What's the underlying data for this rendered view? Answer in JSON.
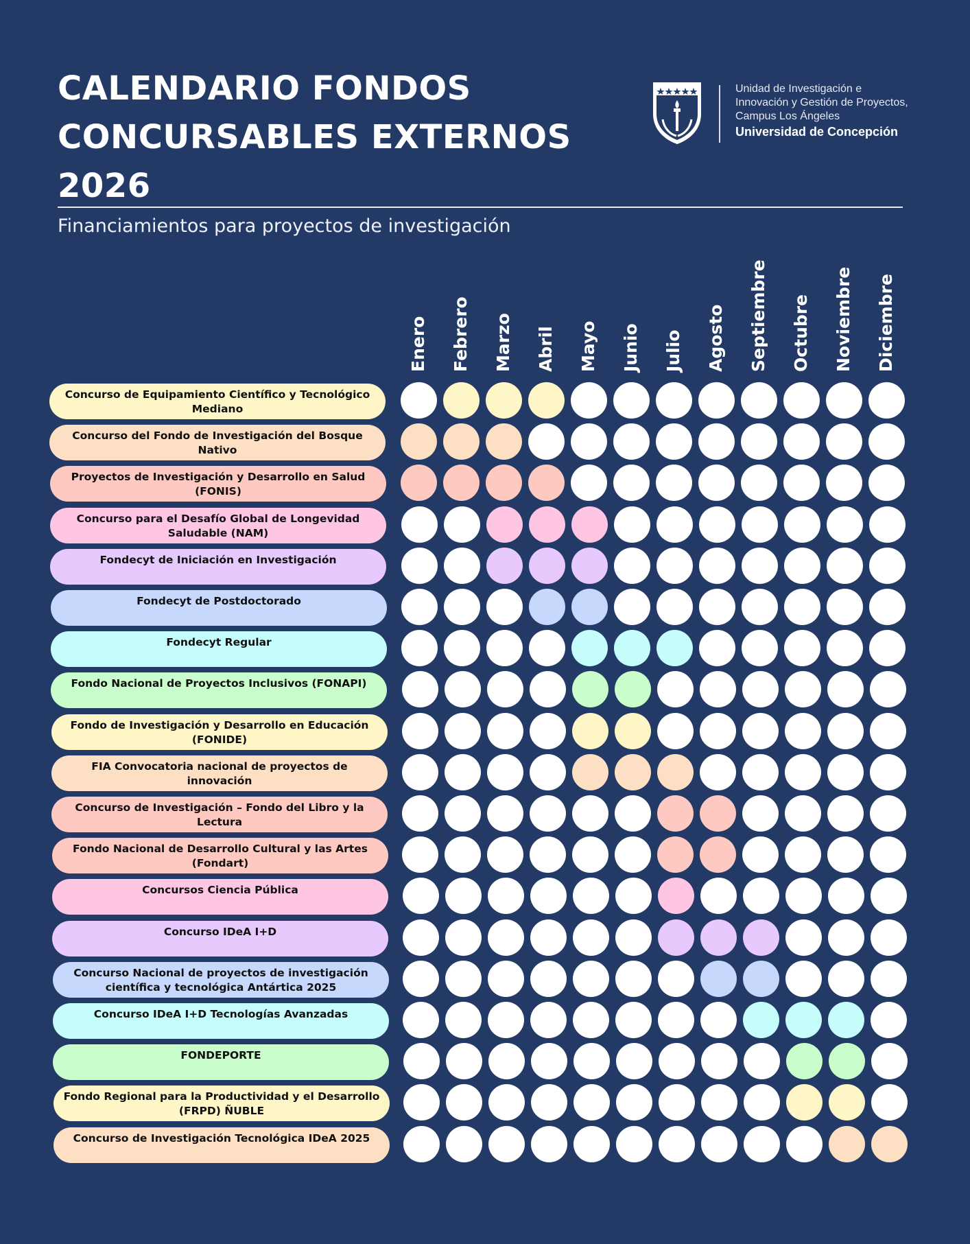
{
  "header": {
    "title_lines": [
      "CALENDARIO FONDOS",
      "CONCURSABLES EXTERNOS",
      "2026"
    ],
    "subtitle": "Financiamientos para proyectos de investigación"
  },
  "logo": {
    "line1": "Unidad de Investigación e",
    "line2": "Innovación y Gestión de Proyectos,",
    "line3": "Campus Los Ángeles",
    "university": "Universidad de Concepción",
    "icon": "udec-shield-icon"
  },
  "months": [
    "Enero",
    "Febrero",
    "Marzo",
    "Abril",
    "Mayo",
    "Junio",
    "Julio",
    "Agosto",
    "Septiembre",
    "Octubre",
    "Noviembre",
    "Diciembre"
  ],
  "colors": {
    "background": "#233a66",
    "empty": "#ffffff",
    "yellow": "#fff6c7",
    "peach": "#fde0c3",
    "salmon": "#fdc9c0",
    "pink": "#fec6e3",
    "lavender": "#e8c9fd",
    "blue": "#c7d8fd",
    "cyan": "#c5fdfd",
    "green": "#c9fdcb"
  },
  "funds": [
    {
      "label": "Concurso de Equipamiento Científico y Tecnológico Mediano",
      "color": "yellow",
      "active_months": [
        2,
        3,
        4
      ]
    },
    {
      "label": "Concurso del Fondo de Investigación del Bosque Nativo",
      "color": "peach",
      "active_months": [
        1,
        2,
        3
      ]
    },
    {
      "label": "Proyectos de Investigación y Desarrollo en Salud (FONIS)",
      "color": "salmon",
      "active_months": [
        1,
        2,
        3,
        4
      ]
    },
    {
      "label": "Concurso para el Desafío Global de Longevidad Saludable (NAM)",
      "color": "pink",
      "active_months": [
        3,
        4,
        5
      ]
    },
    {
      "label": "Fondecyt de Iniciación en Investigación",
      "color": "lavender",
      "active_months": [
        3,
        4,
        5
      ]
    },
    {
      "label": "Fondecyt de Postdoctorado",
      "color": "blue",
      "active_months": [
        4,
        5
      ]
    },
    {
      "label": "Fondecyt Regular",
      "color": "cyan",
      "active_months": [
        5,
        6,
        7
      ]
    },
    {
      "label": "Fondo Nacional de Proyectos Inclusivos (FONAPI)",
      "color": "green",
      "active_months": [
        5,
        6
      ]
    },
    {
      "label": "Fondo de Investigación y Desarrollo en Educación (FONIDE)",
      "color": "yellow",
      "active_months": [
        5,
        6
      ]
    },
    {
      "label": "FIA Convocatoria nacional de proyectos de innovación",
      "color": "peach",
      "active_months": [
        5,
        6,
        7
      ]
    },
    {
      "label": "Concurso de Investigación – Fondo del Libro y la Lectura",
      "color": "salmon",
      "active_months": [
        7,
        8
      ]
    },
    {
      "label": "Fondo Nacional de Desarrollo Cultural y las Artes (Fondart)",
      "color": "salmon",
      "active_months": [
        7,
        8
      ]
    },
    {
      "label": "Concursos Ciencia Pública",
      "color": "pink",
      "active_months": [
        7
      ]
    },
    {
      "label": "Concurso IDeA I+D",
      "color": "lavender",
      "active_months": [
        7,
        8,
        9
      ]
    },
    {
      "label": "Concurso Nacional de proyectos de investigación científica y tecnológica Antártica 2025",
      "color": "blue",
      "active_months": [
        8,
        9
      ]
    },
    {
      "label": "Concurso IDeA I+D Tecnologías Avanzadas",
      "color": "cyan",
      "active_months": [
        9,
        10,
        11
      ]
    },
    {
      "label": "FONDEPORTE",
      "color": "green",
      "active_months": [
        10,
        11
      ]
    },
    {
      "label": "Fondo Regional para la Productividad y el Desarrollo (FRPD) ÑUBLE",
      "color": "yellow",
      "active_months": [
        10,
        11
      ]
    },
    {
      "label": "Concurso de Investigación Tecnológica IDeA 2025",
      "color": "peach",
      "active_months": [
        11,
        12
      ]
    }
  ]
}
